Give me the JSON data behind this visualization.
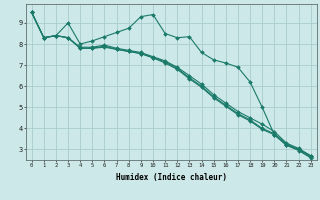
{
  "background_color": "#cce8e8",
  "grid_color": "#aacccc",
  "line_color": "#1a7a6a",
  "xlabel": "Humidex (Indice chaleur)",
  "xlim": [
    -0.5,
    23.5
  ],
  "ylim": [
    2.5,
    9.9
  ],
  "yticks": [
    3,
    4,
    5,
    6,
    7,
    8,
    9
  ],
  "xticks": [
    0,
    1,
    2,
    3,
    4,
    5,
    6,
    7,
    8,
    9,
    10,
    11,
    12,
    13,
    14,
    15,
    16,
    17,
    18,
    19,
    20,
    21,
    22,
    23
  ],
  "series": [
    {
      "x": [
        0,
        1,
        2,
        3,
        4,
        5,
        6,
        7,
        8,
        9,
        10,
        11,
        12,
        13,
        14,
        15,
        16,
        17,
        18,
        19,
        20,
        21,
        22,
        23
      ],
      "y": [
        9.5,
        8.3,
        8.4,
        9.0,
        8.0,
        8.15,
        8.35,
        8.55,
        8.75,
        9.3,
        9.4,
        8.5,
        8.3,
        8.35,
        7.6,
        7.25,
        7.1,
        6.9,
        6.2,
        5.0,
        3.7,
        3.2,
        3.0,
        2.7
      ]
    },
    {
      "x": [
        0,
        1,
        2,
        3,
        4,
        5,
        6,
        7,
        8,
        9,
        10,
        11,
        12,
        13,
        14,
        15,
        16,
        17,
        18,
        19,
        20,
        21,
        22,
        23
      ],
      "y": [
        9.5,
        8.3,
        8.4,
        8.3,
        7.85,
        7.85,
        7.95,
        7.8,
        7.7,
        7.6,
        7.4,
        7.2,
        6.9,
        6.5,
        6.1,
        5.6,
        5.2,
        4.8,
        4.5,
        4.2,
        3.85,
        3.3,
        3.05,
        2.7
      ]
    },
    {
      "x": [
        0,
        1,
        2,
        3,
        4,
        5,
        6,
        7,
        8,
        9,
        10,
        11,
        12,
        13,
        14,
        15,
        16,
        17,
        18,
        19,
        20,
        21,
        22,
        23
      ],
      "y": [
        9.5,
        8.3,
        8.4,
        8.3,
        7.8,
        7.8,
        7.85,
        7.75,
        7.65,
        7.55,
        7.35,
        7.15,
        6.85,
        6.4,
        6.0,
        5.5,
        5.1,
        4.7,
        4.4,
        4.0,
        3.75,
        3.25,
        3.0,
        2.65
      ]
    },
    {
      "x": [
        0,
        1,
        2,
        3,
        4,
        5,
        6,
        7,
        8,
        9,
        10,
        11,
        12,
        13,
        14,
        15,
        16,
        17,
        18,
        19,
        20,
        21,
        22,
        23
      ],
      "y": [
        9.5,
        8.3,
        8.4,
        8.3,
        7.8,
        7.8,
        7.9,
        7.75,
        7.65,
        7.55,
        7.35,
        7.1,
        6.8,
        6.35,
        5.95,
        5.45,
        5.05,
        4.65,
        4.35,
        3.95,
        3.7,
        3.2,
        2.95,
        2.6
      ]
    }
  ]
}
